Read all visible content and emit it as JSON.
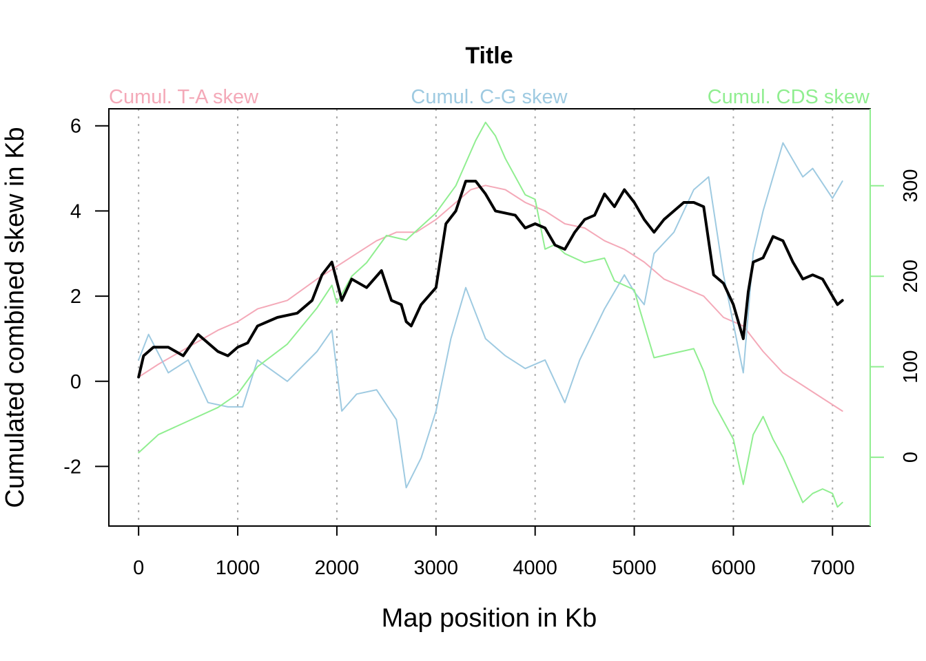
{
  "chart_data": {
    "type": "line",
    "title": "Title",
    "xlabel": "Map position in Kb",
    "ylabel": "Cumulated combined skew in Kb",
    "xlim": [
      -300,
      7380
    ],
    "ylim": [
      -3.4,
      6.4
    ],
    "y2lim": [
      -76,
      385
    ],
    "x_ticks": [
      0,
      1000,
      2000,
      3000,
      4000,
      5000,
      6000,
      7000
    ],
    "x_tick_labels": [
      "0",
      "1000",
      "2000",
      "3000",
      "4000",
      "5000",
      "6000",
      "7000"
    ],
    "y_ticks": [
      -2,
      0,
      2,
      4,
      6
    ],
    "y_tick_labels": [
      "-2",
      "0",
      "2",
      "4",
      "6"
    ],
    "y2_ticks": [
      0,
      100,
      200,
      300
    ],
    "y2_tick_labels": [
      "0",
      "100",
      "200",
      "300"
    ],
    "grid": "vertical dotted at x ticks",
    "series": [
      {
        "name": "Cumul. T-A skew",
        "color": "#f4a9b8",
        "axis": "left",
        "width": 2,
        "x": [
          0,
          200,
          500,
          800,
          1000,
          1200,
          1500,
          1800,
          2000,
          2200,
          2400,
          2600,
          2800,
          3000,
          3200,
          3350,
          3500,
          3700,
          3900,
          4100,
          4300,
          4500,
          4700,
          4900,
          5100,
          5300,
          5500,
          5700,
          5900,
          6100,
          6300,
          6500,
          6700,
          6900,
          7100
        ],
        "y": [
          0.1,
          0.4,
          0.8,
          1.2,
          1.4,
          1.7,
          1.9,
          2.4,
          2.7,
          3.0,
          3.3,
          3.5,
          3.5,
          3.8,
          4.2,
          4.5,
          4.6,
          4.5,
          4.2,
          4.0,
          3.7,
          3.6,
          3.3,
          3.1,
          2.8,
          2.4,
          2.2,
          2.0,
          1.5,
          1.3,
          0.7,
          0.2,
          -0.1,
          -0.4,
          -0.7
        ]
      },
      {
        "name": "Cumul. C-G skew",
        "color": "#9ecae1",
        "axis": "left",
        "width": 2,
        "x": [
          0,
          100,
          300,
          500,
          700,
          900,
          1050,
          1200,
          1500,
          1800,
          1950,
          2050,
          2200,
          2400,
          2600,
          2700,
          2850,
          3000,
          3150,
          3300,
          3500,
          3700,
          3900,
          4100,
          4300,
          4450,
          4700,
          4900,
          5000,
          5100,
          5200,
          5400,
          5600,
          5750,
          5900,
          6100,
          6200,
          6300,
          6500,
          6700,
          6800,
          7000,
          7100
        ],
        "y": [
          0.5,
          1.1,
          0.2,
          0.5,
          -0.5,
          -0.6,
          -0.6,
          0.5,
          0.0,
          0.7,
          1.2,
          -0.7,
          -0.3,
          -0.2,
          -0.9,
          -2.5,
          -1.8,
          -0.7,
          1.0,
          2.2,
          1.0,
          0.6,
          0.3,
          0.5,
          -0.5,
          0.5,
          1.7,
          2.5,
          2.1,
          1.8,
          3.0,
          3.5,
          4.5,
          4.8,
          2.5,
          0.2,
          3.0,
          4.0,
          5.6,
          4.8,
          5.0,
          4.3,
          4.7
        ]
      },
      {
        "name": "Cumul. CDS skew",
        "color": "#90ee90",
        "axis": "right",
        "width": 2,
        "x": [
          0,
          200,
          500,
          800,
          1000,
          1200,
          1500,
          1800,
          1950,
          2000,
          2150,
          2300,
          2500,
          2700,
          2800,
          3000,
          3200,
          3400,
          3500,
          3600,
          3700,
          3900,
          4000,
          4100,
          4200,
          4300,
          4500,
          4700,
          4800,
          5000,
          5050,
          5200,
          5400,
          5600,
          5700,
          5800,
          5900,
          6000,
          6100,
          6200,
          6300,
          6400,
          6500,
          6700,
          6800,
          6900,
          7000,
          7050,
          7100
        ],
        "y": [
          5,
          25,
          40,
          55,
          70,
          100,
          125,
          165,
          190,
          170,
          200,
          215,
          245,
          240,
          250,
          270,
          300,
          350,
          370,
          355,
          330,
          290,
          285,
          230,
          235,
          225,
          215,
          220,
          195,
          185,
          165,
          110,
          115,
          120,
          95,
          60,
          40,
          20,
          -30,
          25,
          45,
          20,
          0,
          -50,
          -40,
          -35,
          -40,
          -55,
          -50
        ]
      },
      {
        "name": "",
        "color": "#000000",
        "axis": "left",
        "width": 4,
        "x": [
          0,
          50,
          150,
          300,
          450,
          600,
          800,
          900,
          1000,
          1100,
          1200,
          1400,
          1600,
          1750,
          1850,
          1950,
          2050,
          2150,
          2300,
          2450,
          2550,
          2650,
          2700,
          2750,
          2850,
          3000,
          3100,
          3200,
          3300,
          3400,
          3500,
          3600,
          3800,
          3900,
          4000,
          4100,
          4200,
          4300,
          4400,
          4500,
          4600,
          4700,
          4800,
          4900,
          5000,
          5100,
          5200,
          5300,
          5400,
          5500,
          5600,
          5700,
          5800,
          5900,
          6000,
          6050,
          6100,
          6150,
          6200,
          6300,
          6400,
          6500,
          6600,
          6700,
          6800,
          6900,
          7000,
          7050,
          7100
        ],
        "y": [
          0.1,
          0.6,
          0.8,
          0.8,
          0.6,
          1.1,
          0.7,
          0.6,
          0.8,
          0.9,
          1.3,
          1.5,
          1.6,
          1.9,
          2.5,
          2.8,
          1.9,
          2.4,
          2.2,
          2.6,
          1.9,
          1.8,
          1.4,
          1.3,
          1.8,
          2.2,
          3.7,
          4.0,
          4.7,
          4.7,
          4.4,
          4.0,
          3.9,
          3.6,
          3.7,
          3.6,
          3.2,
          3.1,
          3.5,
          3.8,
          3.9,
          4.4,
          4.1,
          4.5,
          4.2,
          3.8,
          3.5,
          3.8,
          4.0,
          4.2,
          4.2,
          4.1,
          2.5,
          2.3,
          1.8,
          1.4,
          1.0,
          2.1,
          2.8,
          2.9,
          3.4,
          3.3,
          2.8,
          2.4,
          2.5,
          2.4,
          2.0,
          1.8,
          1.9
        ]
      }
    ]
  }
}
